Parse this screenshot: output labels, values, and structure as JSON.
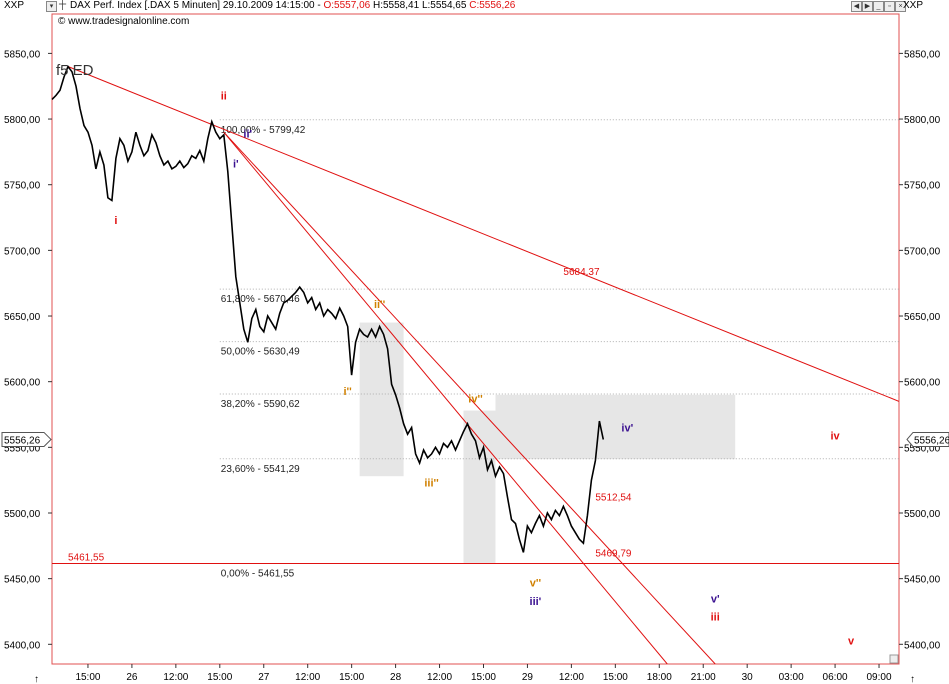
{
  "header": {
    "symbol_left": "XXP",
    "symbol_right": "XXP",
    "instrument": "DAX Perf. Index [.DAX  5 Minuten] 29.10.2009 14:15:00 - ",
    "open": "O:5557,06",
    "high": "H:5558,41",
    "low": "L:5554,65",
    "close": "C:5556,26",
    "website": "www.tradesignalonline.com",
    "pattern_label": "f5 ED"
  },
  "colors": {
    "price": "#000000",
    "trendline": "#e01010",
    "grid": "#b0b0b0",
    "box": "#e6e6e6",
    "wave_red": "#e01010",
    "wave_purple": "#3a1090",
    "wave_orange": "#d08000",
    "fib_text": "#222222",
    "frame": "#e05050"
  },
  "current_price_tag": "5556,26",
  "chart_data": {
    "type": "line",
    "title": "DAX Perf. Index [.DAX  5 Minuten]",
    "y_ticks": [
      5400,
      5450,
      5500,
      5550,
      5600,
      5650,
      5700,
      5750,
      5800,
      5850
    ],
    "y_tick_labels": [
      "5400,00",
      "5450,00",
      "5500,00",
      "5550,00",
      "5600,00",
      "5650,00",
      "5700,00",
      "5750,00",
      "5800,00",
      "5850,00"
    ],
    "ylim": [
      5385,
      5880
    ],
    "xlim": [
      0,
      212
    ],
    "x_ticks": [
      {
        "x": 9,
        "label": "15:00"
      },
      {
        "x": 20,
        "label": "26"
      },
      {
        "x": 31,
        "label": "12:00"
      },
      {
        "x": 42,
        "label": "15:00"
      },
      {
        "x": 53,
        "label": "27"
      },
      {
        "x": 64,
        "label": "12:00"
      },
      {
        "x": 75,
        "label": "15:00"
      },
      {
        "x": 86,
        "label": "28"
      },
      {
        "x": 97,
        "label": "12:00"
      },
      {
        "x": 108,
        "label": "15:00"
      },
      {
        "x": 119,
        "label": "29"
      },
      {
        "x": 130,
        "label": "12:00"
      },
      {
        "x": 141,
        "label": "15:00"
      },
      {
        "x": 152,
        "label": "18:00"
      },
      {
        "x": 163,
        "label": "21:00"
      },
      {
        "x": 174,
        "label": "30"
      },
      {
        "x": 185,
        "label": "03:00"
      },
      {
        "x": 196,
        "label": "06:00"
      },
      {
        "x": 207,
        "label": "09:00"
      }
    ],
    "series": [
      {
        "values": [
          [
            0,
            5815
          ],
          [
            1,
            5818
          ],
          [
            2,
            5822
          ],
          [
            3,
            5832
          ],
          [
            4,
            5840
          ],
          [
            5,
            5836
          ],
          [
            6,
            5825
          ],
          [
            7,
            5808
          ],
          [
            8,
            5795
          ],
          [
            9,
            5790
          ],
          [
            10,
            5780
          ],
          [
            11,
            5762
          ],
          [
            12,
            5775
          ],
          [
            13,
            5765
          ],
          [
            14,
            5740
          ],
          [
            15,
            5738
          ],
          [
            16,
            5770
          ],
          [
            17,
            5785
          ],
          [
            18,
            5780
          ],
          [
            19,
            5768
          ],
          [
            20,
            5775
          ],
          [
            21,
            5790
          ],
          [
            22,
            5780
          ],
          [
            23,
            5772
          ],
          [
            24,
            5776
          ],
          [
            25,
            5788
          ],
          [
            26,
            5782
          ],
          [
            27,
            5772
          ],
          [
            28,
            5765
          ],
          [
            29,
            5768
          ],
          [
            30,
            5762
          ],
          [
            31,
            5764
          ],
          [
            32,
            5768
          ],
          [
            33,
            5763
          ],
          [
            34,
            5766
          ],
          [
            35,
            5772
          ],
          [
            36,
            5770
          ],
          [
            37,
            5776
          ],
          [
            38,
            5768
          ],
          [
            39,
            5785
          ],
          [
            40,
            5798
          ],
          [
            41,
            5790
          ],
          [
            42,
            5785
          ],
          [
            43,
            5788
          ],
          [
            44,
            5760
          ],
          [
            45,
            5720
          ],
          [
            46,
            5680
          ],
          [
            47,
            5660
          ],
          [
            48,
            5640
          ],
          [
            49,
            5630
          ],
          [
            50,
            5648
          ],
          [
            51,
            5655
          ],
          [
            52,
            5642
          ],
          [
            53,
            5638
          ],
          [
            54,
            5650
          ],
          [
            55,
            5645
          ],
          [
            56,
            5640
          ],
          [
            57,
            5652
          ],
          [
            58,
            5660
          ],
          [
            59,
            5662
          ],
          [
            60,
            5665
          ],
          [
            61,
            5668
          ],
          [
            62,
            5672
          ],
          [
            63,
            5668
          ],
          [
            64,
            5660
          ],
          [
            65,
            5664
          ],
          [
            66,
            5655
          ],
          [
            67,
            5660
          ],
          [
            68,
            5650
          ],
          [
            69,
            5655
          ],
          [
            70,
            5652
          ],
          [
            71,
            5648
          ],
          [
            72,
            5656
          ],
          [
            73,
            5650
          ],
          [
            74,
            5642
          ],
          [
            75,
            5605
          ],
          [
            76,
            5630
          ],
          [
            77,
            5640
          ],
          [
            78,
            5636
          ],
          [
            79,
            5634
          ],
          [
            80,
            5640
          ],
          [
            81,
            5634
          ],
          [
            82,
            5642
          ],
          [
            83,
            5636
          ],
          [
            84,
            5625
          ],
          [
            85,
            5598
          ],
          [
            86,
            5590
          ],
          [
            87,
            5580
          ],
          [
            88,
            5568
          ],
          [
            89,
            5560
          ],
          [
            90,
            5565
          ],
          [
            91,
            5545
          ],
          [
            92,
            5538
          ],
          [
            93,
            5548
          ],
          [
            94,
            5542
          ],
          [
            95,
            5545
          ],
          [
            96,
            5550
          ],
          [
            97,
            5545
          ],
          [
            98,
            5553
          ],
          [
            99,
            5550
          ],
          [
            100,
            5555
          ],
          [
            101,
            5548
          ],
          [
            102,
            5555
          ],
          [
            103,
            5562
          ],
          [
            104,
            5568
          ],
          [
            105,
            5560
          ],
          [
            106,
            5555
          ],
          [
            107,
            5542
          ],
          [
            108,
            5550
          ],
          [
            109,
            5533
          ],
          [
            110,
            5540
          ],
          [
            111,
            5528
          ],
          [
            112,
            5535
          ],
          [
            113,
            5530
          ],
          [
            114,
            5512
          ],
          [
            115,
            5495
          ],
          [
            116,
            5492
          ],
          [
            117,
            5480
          ],
          [
            118,
            5470
          ],
          [
            119,
            5490
          ],
          [
            120,
            5485
          ],
          [
            121,
            5492
          ],
          [
            122,
            5498
          ],
          [
            123,
            5490
          ],
          [
            124,
            5500
          ],
          [
            125,
            5495
          ],
          [
            126,
            5502
          ],
          [
            127,
            5498
          ],
          [
            128,
            5505
          ],
          [
            129,
            5498
          ],
          [
            130,
            5490
          ],
          [
            131,
            5485
          ],
          [
            132,
            5480
          ],
          [
            133,
            5477
          ],
          [
            134,
            5498
          ],
          [
            135,
            5525
          ],
          [
            136,
            5540
          ],
          [
            137,
            5570
          ],
          [
            138,
            5556
          ]
        ]
      }
    ],
    "horizontal_lines": [
      {
        "y": 5799.42,
        "label": "100,00% - 5799,42"
      },
      {
        "y": 5670.46,
        "label": "61,80% - 5670,46"
      },
      {
        "y": 5630.49,
        "label": "50,00% - 5630,49"
      },
      {
        "y": 5590.62,
        "label": "38,20% - 5590,62"
      },
      {
        "y": 5541.29,
        "label": "23,60% - 5541,29"
      },
      {
        "y": 5461.55,
        "label": "0,00% - 5461,55"
      }
    ],
    "level_label": "5461,55",
    "trendlines": [
      {
        "from": [
          4,
          5840
        ],
        "to": [
          212,
          5585
        ],
        "label": "5684,37",
        "label_at": [
          128,
          5684.37
        ]
      },
      {
        "from": [
          43,
          5790
        ],
        "to": [
          154,
          5385
        ],
        "label": "5469,79",
        "label_at": [
          136,
          5469.79
        ]
      },
      {
        "from": [
          43,
          5790
        ],
        "to": [
          166,
          5385
        ],
        "label": "5512,54",
        "label_at": [
          136,
          5512.54
        ]
      }
    ],
    "boxes": [
      {
        "x": [
          77,
          88
        ],
        "y": [
          5528,
          5645
        ]
      },
      {
        "x": [
          103,
          111
        ],
        "y": [
          5462,
          5578
        ]
      },
      {
        "x": [
          111,
          171
        ],
        "y": [
          5541,
          5590
        ]
      }
    ],
    "wave_labels": [
      {
        "text": "i",
        "x": 16,
        "y": 5720,
        "color": "red"
      },
      {
        "text": "ii",
        "x": 43,
        "y": 5815,
        "color": "red"
      },
      {
        "text": "i'",
        "x": 46,
        "y": 5763,
        "color": "purple"
      },
      {
        "text": "ii'",
        "x": 49,
        "y": 5786,
        "color": "purple"
      },
      {
        "text": "i''",
        "x": 74,
        "y": 5590,
        "color": "orange"
      },
      {
        "text": "ii''",
        "x": 82,
        "y": 5656,
        "color": "orange"
      },
      {
        "text": "iii''",
        "x": 95,
        "y": 5520,
        "color": "orange"
      },
      {
        "text": "iv''",
        "x": 106,
        "y": 5584,
        "color": "orange"
      },
      {
        "text": "v''",
        "x": 121,
        "y": 5444,
        "color": "orange"
      },
      {
        "text": "iii'",
        "x": 121,
        "y": 5430,
        "color": "purple"
      },
      {
        "text": "iv'",
        "x": 144,
        "y": 5562,
        "color": "purple"
      },
      {
        "text": "iv",
        "x": 196,
        "y": 5556,
        "color": "red"
      },
      {
        "text": "v'",
        "x": 166,
        "y": 5432,
        "color": "purple"
      },
      {
        "text": "iii",
        "x": 166,
        "y": 5418,
        "color": "red"
      },
      {
        "text": "v",
        "x": 200,
        "y": 5400,
        "color": "red"
      }
    ]
  }
}
